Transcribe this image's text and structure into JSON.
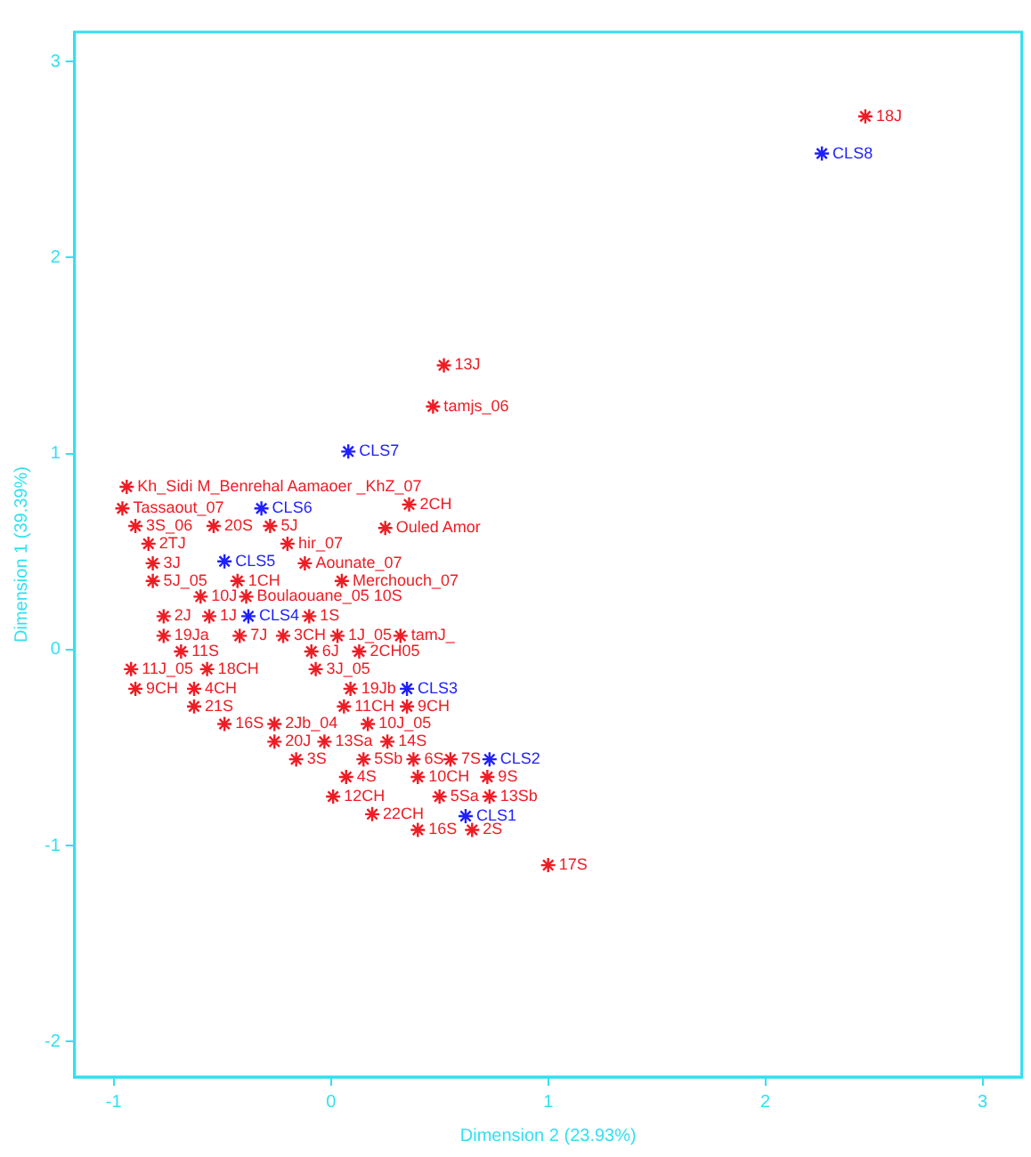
{
  "chart_data": {
    "type": "scatter",
    "xlabel": "Dimension 2 (23.93%)",
    "ylabel": "Dimension 1 (39.39%)",
    "xlim": [
      -1.18,
      3.18
    ],
    "ylim": [
      -2.18,
      3.15
    ],
    "xticks": [
      -1,
      0,
      1,
      2,
      3
    ],
    "yticks": [
      -2,
      -1,
      0,
      1,
      2,
      3
    ],
    "grid": false,
    "legend": false,
    "marker": "cross",
    "series": [
      {
        "color": "#ee1c24",
        "x": [
          2.46,
          0.52,
          0.47,
          0.36,
          -0.94,
          -0.96,
          -0.9,
          -0.54,
          -0.28,
          0.25,
          -0.84,
          -0.2,
          -0.82,
          -0.12,
          -0.82,
          -0.43,
          0.05,
          -0.6,
          -0.39,
          -0.77,
          -0.56,
          -0.1,
          -0.77,
          -0.42,
          -0.22,
          0.03,
          0.32,
          -0.69,
          -0.09,
          0.13,
          -0.92,
          -0.57,
          -0.07,
          -0.9,
          -0.63,
          0.09,
          -0.63,
          0.06,
          0.35,
          -0.49,
          -0.26,
          0.17,
          -0.26,
          -0.03,
          0.26,
          -0.16,
          0.15,
          0.38,
          0.55,
          0.07,
          0.4,
          0.72,
          0.01,
          0.5,
          0.73,
          0.19,
          0.4,
          0.65,
          1.0
        ],
        "values": [
          2.72,
          1.45,
          1.24,
          0.74,
          0.83,
          0.72,
          0.63,
          0.63,
          0.63,
          0.62,
          0.54,
          0.54,
          0.44,
          0.44,
          0.35,
          0.35,
          0.35,
          0.27,
          0.27,
          0.17,
          0.17,
          0.17,
          0.07,
          0.07,
          0.07,
          0.07,
          0.07,
          -0.01,
          -0.01,
          -0.01,
          -0.1,
          -0.1,
          -0.1,
          -0.2,
          -0.2,
          -0.2,
          -0.29,
          -0.29,
          -0.29,
          -0.38,
          -0.38,
          -0.38,
          -0.47,
          -0.47,
          -0.47,
          -0.56,
          -0.56,
          -0.56,
          -0.56,
          -0.65,
          -0.65,
          -0.65,
          -0.75,
          -0.75,
          -0.75,
          -0.84,
          -0.92,
          -0.92,
          -1.1
        ]
      },
      {
        "color": "#1f1fff",
        "x": [
          2.26,
          0.08,
          -0.32,
          -0.49,
          -0.38,
          0.35,
          0.73,
          0.62
        ],
        "values": [
          2.53,
          1.01,
          0.72,
          0.45,
          0.17,
          -0.2,
          -0.56,
          -0.85
        ]
      }
    ],
    "annotations": [
      {
        "text": "18J",
        "x": 2.46,
        "y": 2.72
      },
      {
        "text": "13J",
        "x": 0.52,
        "y": 1.45
      },
      {
        "text": "tamjs_06",
        "x": 0.47,
        "y": 1.24
      },
      {
        "text": "2CH",
        "x": 0.36,
        "y": 0.74
      },
      {
        "text": "Kh_Sidi M_Benrehal Aamaoer _KhZ_07",
        "x": -0.94,
        "y": 0.83
      },
      {
        "text": "Tassaout_07",
        "x": -0.96,
        "y": 0.72
      },
      {
        "text": "3S_06",
        "x": -0.9,
        "y": 0.63
      },
      {
        "text": "20S",
        "x": -0.54,
        "y": 0.63
      },
      {
        "text": "5J",
        "x": -0.28,
        "y": 0.63
      },
      {
        "text": "Ouled Amor",
        "x": 0.25,
        "y": 0.62
      },
      {
        "text": "2TJ",
        "x": -0.84,
        "y": 0.54
      },
      {
        "text": "hir_07",
        "x": -0.2,
        "y": 0.54
      },
      {
        "text": "3J",
        "x": -0.82,
        "y": 0.44
      },
      {
        "text": "Aounate_07",
        "x": -0.12,
        "y": 0.44
      },
      {
        "text": "5J_05",
        "x": -0.82,
        "y": 0.35
      },
      {
        "text": "1CH",
        "x": -0.43,
        "y": 0.35
      },
      {
        "text": "Merchouch_07",
        "x": 0.05,
        "y": 0.35
      },
      {
        "text": "10J",
        "x": -0.6,
        "y": 0.27
      },
      {
        "text": "Boulaouane_05 10S",
        "x": -0.39,
        "y": 0.27
      },
      {
        "text": "2J",
        "x": -0.77,
        "y": 0.17
      },
      {
        "text": "1J",
        "x": -0.56,
        "y": 0.17
      },
      {
        "text": "1S",
        "x": -0.1,
        "y": 0.17
      },
      {
        "text": "19Ja",
        "x": -0.77,
        "y": 0.07
      },
      {
        "text": "7J",
        "x": -0.42,
        "y": 0.07
      },
      {
        "text": "3CH",
        "x": -0.22,
        "y": 0.07
      },
      {
        "text": "1J_05",
        "x": 0.03,
        "y": 0.07
      },
      {
        "text": "tamJ_",
        "x": 0.32,
        "y": 0.07
      },
      {
        "text": "11S",
        "x": -0.69,
        "y": -0.01
      },
      {
        "text": "6J",
        "x": -0.09,
        "y": -0.01
      },
      {
        "text": "2CH05",
        "x": 0.13,
        "y": -0.01
      },
      {
        "text": "11J_05",
        "x": -0.92,
        "y": -0.1
      },
      {
        "text": "18CH",
        "x": -0.57,
        "y": -0.1
      },
      {
        "text": "3J_05",
        "x": -0.07,
        "y": -0.1
      },
      {
        "text": "9CH",
        "x": -0.9,
        "y": -0.2
      },
      {
        "text": "4CH",
        "x": -0.63,
        "y": -0.2
      },
      {
        "text": "19Jb",
        "x": 0.09,
        "y": -0.2
      },
      {
        "text": "21S",
        "x": -0.63,
        "y": -0.29
      },
      {
        "text": "11CH",
        "x": 0.06,
        "y": -0.29
      },
      {
        "text": "9CH",
        "x": 0.35,
        "y": -0.29
      },
      {
        "text": "16S",
        "x": -0.49,
        "y": -0.38
      },
      {
        "text": "2Jb_04",
        "x": -0.26,
        "y": -0.38
      },
      {
        "text": "10J_05",
        "x": 0.17,
        "y": -0.38
      },
      {
        "text": "20J",
        "x": -0.26,
        "y": -0.47
      },
      {
        "text": "13Sa",
        "x": -0.03,
        "y": -0.47
      },
      {
        "text": "14S",
        "x": 0.26,
        "y": -0.47
      },
      {
        "text": "3S",
        "x": -0.16,
        "y": -0.56
      },
      {
        "text": "5Sb",
        "x": 0.15,
        "y": -0.56
      },
      {
        "text": "6S",
        "x": 0.38,
        "y": -0.56
      },
      {
        "text": "7S",
        "x": 0.55,
        "y": -0.56
      },
      {
        "text": "4S",
        "x": 0.07,
        "y": -0.65
      },
      {
        "text": "10CH",
        "x": 0.4,
        "y": -0.65
      },
      {
        "text": "9S",
        "x": 0.72,
        "y": -0.65
      },
      {
        "text": "12CH",
        "x": 0.01,
        "y": -0.75
      },
      {
        "text": "5Sa",
        "x": 0.5,
        "y": -0.75
      },
      {
        "text": "13Sb",
        "x": 0.73,
        "y": -0.75
      },
      {
        "text": "22CH",
        "x": 0.19,
        "y": -0.84
      },
      {
        "text": "16S",
        "x": 0.4,
        "y": -0.92
      },
      {
        "text": "2S",
        "x": 0.65,
        "y": -0.92
      },
      {
        "text": "17S",
        "x": 1.0,
        "y": -1.1
      },
      {
        "text": "CLS8",
        "x": 2.26,
        "y": 2.53
      },
      {
        "text": "CLS7",
        "x": 0.08,
        "y": 1.01
      },
      {
        "text": "CLS6",
        "x": -0.32,
        "y": 0.72
      },
      {
        "text": "CLS5",
        "x": -0.49,
        "y": 0.45
      },
      {
        "text": "CLS4",
        "x": -0.38,
        "y": 0.17
      },
      {
        "text": "CLS3",
        "x": 0.35,
        "y": -0.2
      },
      {
        "text": "CLS2",
        "x": 0.73,
        "y": -0.56
      },
      {
        "text": "CLS1",
        "x": 0.62,
        "y": -0.85
      }
    ]
  }
}
